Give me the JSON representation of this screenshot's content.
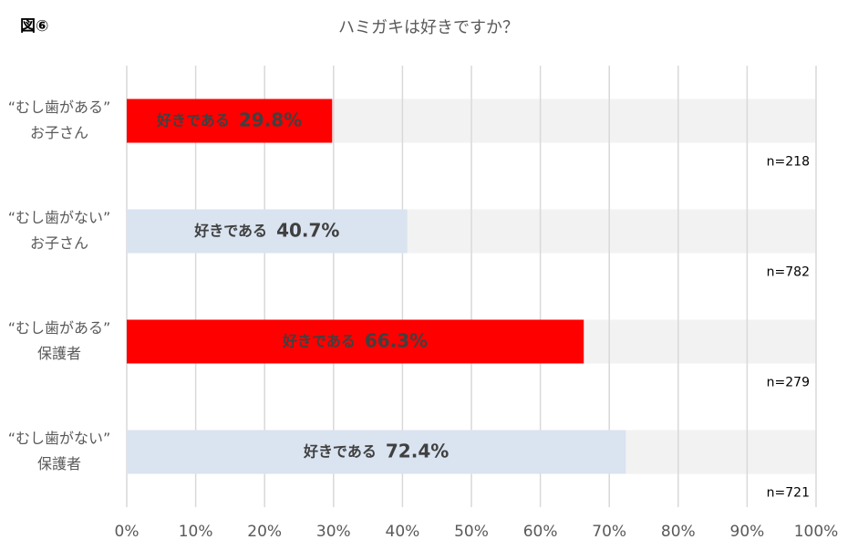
{
  "chart_data": {
    "type": "hbar",
    "figure_label": "図⑥",
    "title": "ハミガキは好きですか？",
    "categories": [
      [
        "“むし歯がある”",
        "お子さん"
      ],
      [
        "“むし歯がない”",
        "お子さん"
      ],
      [
        "“むし歯がある”",
        "保護者"
      ],
      [
        "“むし歯がない”",
        "保護者"
      ]
    ],
    "series": [
      {
        "name": "好きである",
        "colors": [
          "#ff0000",
          "#dae3f0",
          "#ff0000",
          "#dae3f0"
        ],
        "values": [
          29.8,
          40.7,
          66.3,
          72.4
        ],
        "value_labels": [
          "29.8%",
          "40.7%",
          "66.3%",
          "72.4%"
        ]
      }
    ],
    "sample_sizes": [
      "n=218",
      "n=782",
      "n=279",
      "n=721"
    ],
    "xlim": [
      0,
      100
    ],
    "xticks": [
      {
        "value": 0,
        "label": "0%"
      },
      {
        "value": 10,
        "label": "10%"
      },
      {
        "value": 20,
        "label": "20%"
      },
      {
        "value": 30,
        "label": "30%"
      },
      {
        "value": 40,
        "label": "40%"
      },
      {
        "value": 50,
        "label": "50%"
      },
      {
        "value": 60,
        "label": "60%"
      },
      {
        "value": 70,
        "label": "70%"
      },
      {
        "value": 80,
        "label": "80%"
      },
      {
        "value": 90,
        "label": "90%"
      },
      {
        "value": 100,
        "label": "100%"
      }
    ],
    "grid": true
  }
}
